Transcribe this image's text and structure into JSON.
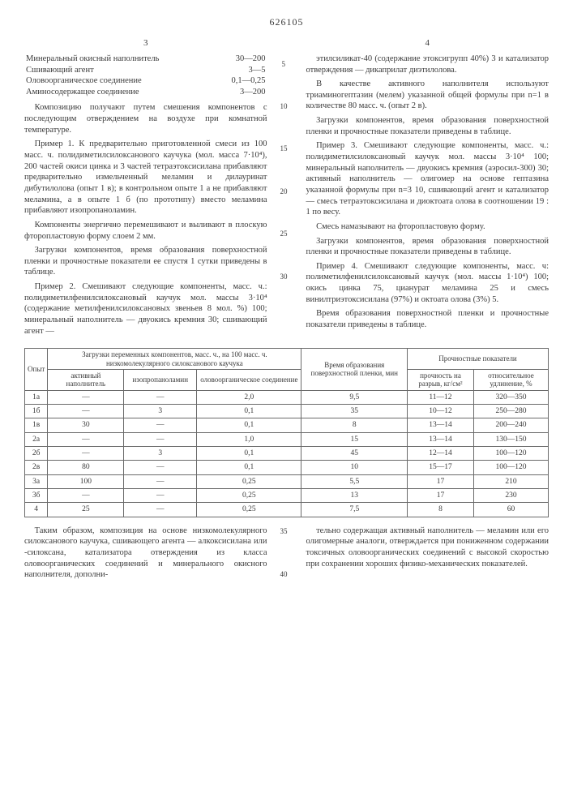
{
  "patent_no": "626105",
  "left": {
    "page": "3",
    "ingredients": [
      {
        "name": "Минеральный окисный наполнитель",
        "val": "30—200"
      },
      {
        "name": "Сшивающий агент",
        "val": "3—5"
      },
      {
        "name": "Оловоорганическое соединение",
        "val": "0,1—0,25"
      },
      {
        "name": "Аминосодержащее соединение",
        "val": "3—200"
      }
    ],
    "paras": [
      "Композицию получают путем смешения компонентов с последующим отверждением на воздухе при комнатной температуре.",
      "Пример 1. К предварительно приготовленной смеси из 100 масс. ч. полидиметилсилоксанового каучука (мол. масса 7·10⁴), 200 частей окиси цинка и 3 частей тетраэтоксисилана прибавляют предварительно измельченный меламин и дилауринат дибутилолова (опыт 1 в); в контрольном опыте 1 а не прибавляют меламина, а в опыте 1 б (по прототипу) вместо меламина прибавляют изопропаноламин.",
      "Компоненты энергично перемешивают и выливают в плоскую фторопластовую форму слоем 2 мм.",
      "Загрузки компонентов, время образования поверхностной пленки и прочностные показатели ее спустя 1 сутки приведены в таблице.",
      "Пример 2. Смешивают следующие компоненты, масс. ч.: полидиметилфенилсилоксановый каучук мол. массы 3·10⁴ (содержание метилфенилсилоксановых звеньев 8 мол. %) 100; минеральный наполнитель — двуокись кремния 30; сшивающий агент —"
    ]
  },
  "right": {
    "page": "4",
    "paras": [
      "этилсиликат-40 (содержание этоксигрупп 40%) 3 и катализатор отверждения — дикаприлат диэтилолова.",
      "В качестве активного наполнителя используют триаминогептазин (мелем) указанной общей формулы при n=1 в количестве 80 масс. ч. (опыт 2 в).",
      "Загрузки компонентов, время образования поверхностной пленки и прочностные показатели приведены в таблице.",
      "Пример 3. Смешивают следующие компоненты, масс. ч.: полидиметилсилоксановый каучук мол. массы 3·10⁴ 100; минеральный наполнитель — двуокись кремния (аэросил-300) 30; активный наполнитель — олигомер на основе гептазина указанной формулы при n=3 10, сшивающий агент и катализатор — смесь тетраэтоксисилана и диоктоата олова в соотношении 19 : 1 по весу.",
      "Смесь намазывают на фторопластовую форму.",
      "Загрузки компонентов, время образования поверхностной пленки и прочностные показатели приведены в таблице.",
      "Пример 4. Смешивают следующие компоненты, масс. ч: полиметилфенилсилоксановый каучук (мол. массы 1·10⁴) 100; окись цинка 75, цианурат меламина 25 и смесь винилтриэтоксисилана (97%) и октоата олова (3%) 5.",
      "Время образования поверхностной пленки и прочностные показатели приведены в таблице."
    ]
  },
  "line_numbers": [
    "5",
    "10",
    "15",
    "20",
    "25",
    "30"
  ],
  "table": {
    "headers": {
      "c1": "Опыт",
      "g1": "Загрузки переменных компонентов, масс. ч., на 100 масс. ч. низкомолекулярного силоксанового каучука",
      "g1a": "активный наполнитель",
      "g1b": "изопропаноламин",
      "g1c": "оловоорганическое соединение",
      "c3": "Время образования поверхностной пленки, мин",
      "g2": "Прочностные показатели",
      "g2a": "прочность на разрыв, кг/см²",
      "g2b": "относительное удлинение, %"
    },
    "rows": [
      [
        "1а",
        "—",
        "—",
        "2,0",
        "9,5",
        "11—12",
        "320—350"
      ],
      [
        "1б",
        "—",
        "3",
        "0,1",
        "35",
        "10—12",
        "250—280"
      ],
      [
        "1в",
        "30",
        "—",
        "0,1",
        "8",
        "13—14",
        "200—240"
      ],
      [
        "2а",
        "—",
        "—",
        "1,0",
        "15",
        "13—14",
        "130—150"
      ],
      [
        "2б",
        "—",
        "3",
        "0,1",
        "45",
        "12—14",
        "100—120"
      ],
      [
        "2в",
        "80",
        "—",
        "0,1",
        "10",
        "15—17",
        "100—120"
      ],
      [
        "3а",
        "100",
        "—",
        "0,25",
        "5,5",
        "17",
        "210"
      ],
      [
        "3б",
        "—",
        "—",
        "0,25",
        "13",
        "17",
        "230"
      ],
      [
        "4",
        "25",
        "—",
        "0,25",
        "7,5",
        "8",
        "60"
      ]
    ]
  },
  "bottom": {
    "left": "Таким образом, композиция на основе низкомолекулярного силоксанового каучука, сшивающего агента — алкоксисилана или -силоксана, катализатора отверждения из класса оловоорганических соединений и минерального окисного наполнителя, дополни-",
    "right": "тельно содержащая активный наполнитель — меламин или его олигомерные аналоги, отверждается при пониженном содержании токсичных оловоорганических соединений с высокой скоростью при сохранении хороших физико-механических показателей.",
    "ln": [
      "35",
      "40"
    ]
  }
}
